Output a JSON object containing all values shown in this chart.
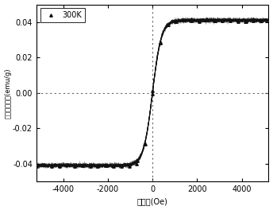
{
  "xlabel": "矫偶力(Oe)",
  "ylabel": "饱和磁化强度(emu/g)",
  "xlim": [
    -5200,
    5200
  ],
  "ylim": [
    -0.05,
    0.05
  ],
  "xticks": [
    -4000,
    -2000,
    0,
    2000,
    4000
  ],
  "yticks": [
    -0.04,
    -0.02,
    0.0,
    0.02,
    0.04
  ],
  "legend_label": "300K",
  "line_color": "#111111",
  "marker": "^",
  "marker_size": 2.5,
  "saturation": 0.041,
  "slope": 0.0025,
  "noise_amplitude": 0.0004,
  "n_points": 600,
  "background_color": "#ffffff",
  "grid_color": "#666666"
}
